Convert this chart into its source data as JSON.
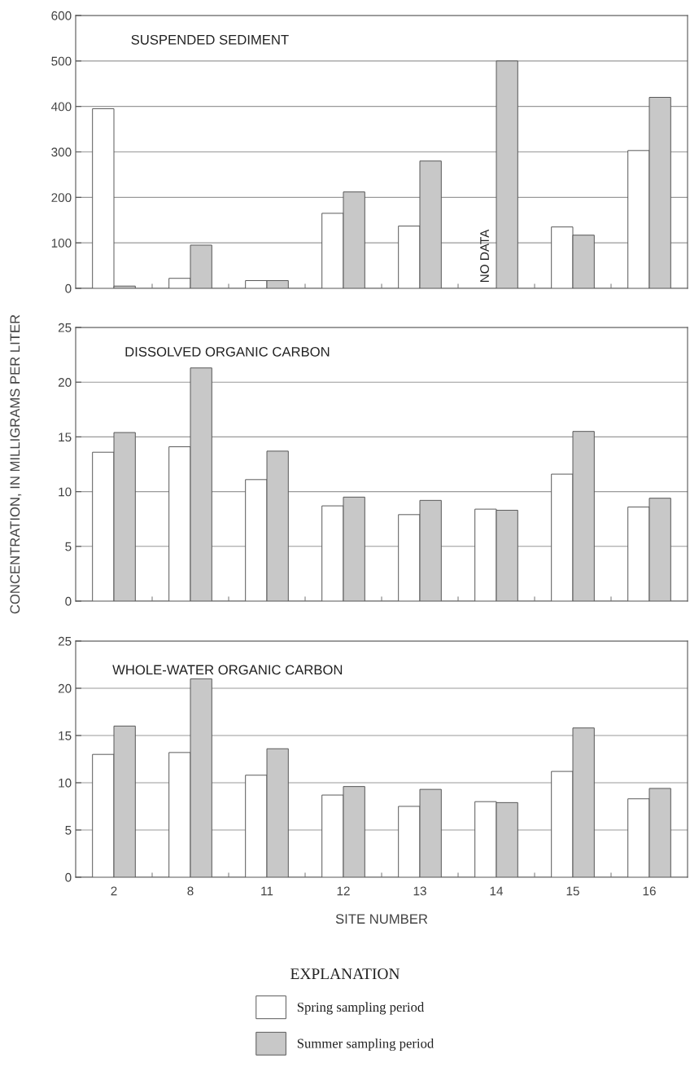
{
  "chart_data": [
    {
      "type": "bar",
      "title": "SUSPENDED SEDIMENT",
      "categories": [
        "2",
        "8",
        "11",
        "12",
        "13",
        "14",
        "15",
        "16"
      ],
      "ylim": [
        0,
        600
      ],
      "yticks": [
        0,
        100,
        200,
        300,
        400,
        500,
        600
      ],
      "grid": "y",
      "tick_labels": "y",
      "series": [
        {
          "color": "#ffffff",
          "values": [
            395,
            22,
            17,
            165,
            137,
            null,
            135,
            303
          ]
        },
        {
          "color": "#c8c8c8",
          "values": [
            5,
            95,
            17,
            212,
            280,
            500,
            117,
            420
          ]
        }
      ],
      "annotations": [
        {
          "text": "NO DATA",
          "x": "14"
        }
      ]
    },
    {
      "type": "bar",
      "title": "DISSOLVED ORGANIC CARBON",
      "ylabel": "CONCENTRATION, IN MILLIGRAMS PER LITER",
      "categories": [
        "2",
        "8",
        "11",
        "12",
        "13",
        "14",
        "15",
        "16"
      ],
      "ylim": [
        0,
        25
      ],
      "yticks": [
        0,
        5,
        10,
        15,
        20,
        25
      ],
      "grid": "y",
      "tick_labels": "y",
      "series": [
        {
          "color": "#ffffff",
          "values": [
            13.6,
            14.1,
            11.1,
            8.7,
            7.9,
            8.4,
            11.6,
            8.6
          ]
        },
        {
          "color": "#c8c8c8",
          "values": [
            15.4,
            21.3,
            13.7,
            9.5,
            9.2,
            8.3,
            15.5,
            9.4
          ]
        }
      ]
    },
    {
      "type": "bar",
      "title": "WHOLE-WATER ORGANIC CARBON",
      "xlabel": "SITE NUMBER",
      "categories": [
        "2",
        "8",
        "11",
        "12",
        "13",
        "14",
        "15",
        "16"
      ],
      "ylim": [
        0,
        25
      ],
      "yticks": [
        0,
        5,
        10,
        15,
        20,
        25
      ],
      "grid": "y",
      "legend": "bottom",
      "legend_title": "EXPLANATION",
      "series": [
        {
          "name": "Spring sampling period",
          "color": "#ffffff",
          "values": [
            13.0,
            13.2,
            10.8,
            8.7,
            7.5,
            8.0,
            11.2,
            8.3
          ]
        },
        {
          "name": "Summer sampling period",
          "color": "#c8c8c8",
          "values": [
            16.0,
            21.0,
            13.6,
            9.6,
            9.3,
            7.9,
            15.8,
            9.4
          ]
        }
      ]
    }
  ]
}
